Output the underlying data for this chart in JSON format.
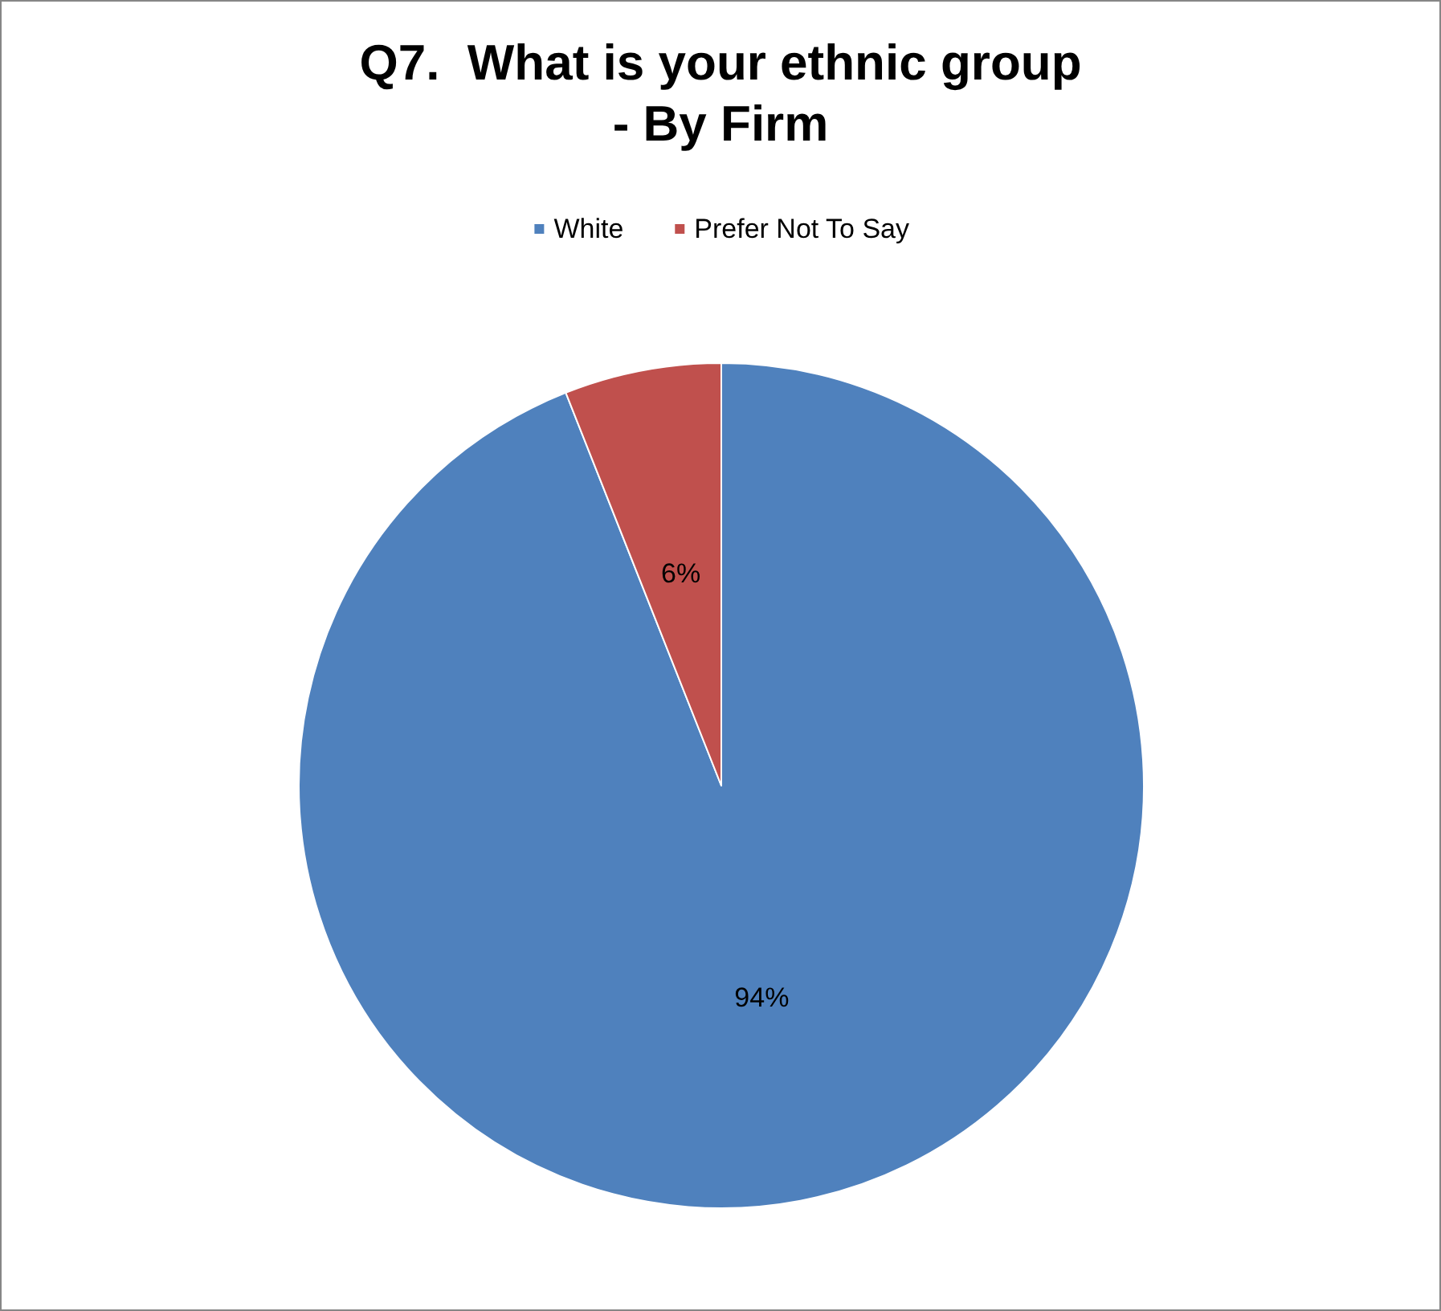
{
  "chart_data": {
    "type": "pie",
    "title": "Q7.  What is your ethnic group\n- By Firm",
    "categories": [
      "White",
      "Prefer Not To Say"
    ],
    "values": [
      94,
      6
    ],
    "colors": [
      "#4f81bd",
      "#c0504d"
    ],
    "value_labels": [
      "94%",
      "6%"
    ],
    "legend": "top"
  }
}
